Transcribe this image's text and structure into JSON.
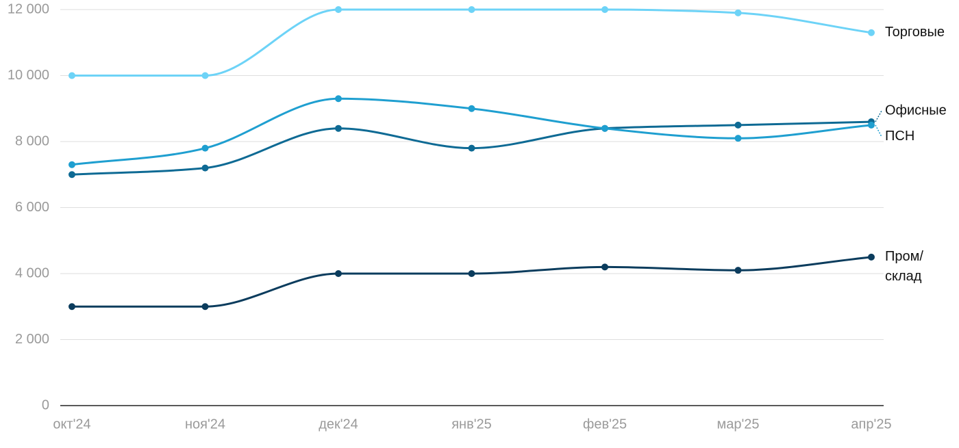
{
  "chart_data": {
    "type": "line",
    "categories": [
      "окт'24",
      "ноя'24",
      "дек'24",
      "янв'25",
      "фев'25",
      "мар'25",
      "апр'25"
    ],
    "series": [
      {
        "name": "Торговые",
        "color": "#6dd3f7",
        "values": [
          10000,
          10000,
          12000,
          12000,
          12000,
          11900,
          11300
        ]
      },
      {
        "name": "Офисные",
        "color": "#0e6a94",
        "values": [
          7000,
          7200,
          8400,
          7800,
          8400,
          8500,
          8600
        ]
      },
      {
        "name": "ПСН",
        "color": "#1f9fd0",
        "values": [
          7300,
          7800,
          9300,
          9000,
          8400,
          8100,
          8500
        ]
      },
      {
        "name": "Пром/склад",
        "color": "#0b3c5d",
        "values": [
          3000,
          3000,
          4000,
          4000,
          4200,
          4100,
          4500
        ]
      }
    ],
    "ylim": [
      0,
      12000
    ],
    "yticks": [
      0,
      {
        "value": 2000,
        "label": "2 000"
      },
      {
        "value": 4000,
        "label": "4 000"
      },
      {
        "value": 6000,
        "label": "6 000"
      },
      {
        "value": 8000,
        "label": "8 000"
      },
      {
        "value": 10000,
        "label": "10 000"
      },
      {
        "value": 12000,
        "label": "12 000"
      }
    ],
    "grid": true
  }
}
